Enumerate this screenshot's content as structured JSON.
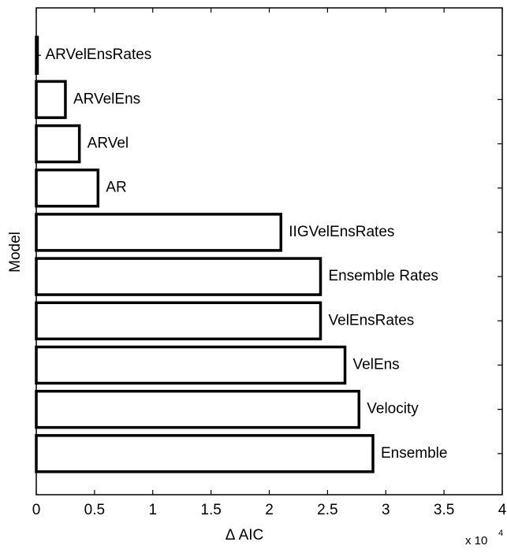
{
  "chart_data": {
    "type": "barh",
    "xlabel": "Δ AIC",
    "ylabel": "Model",
    "x_multiplier": {
      "base": "x 10",
      "exponent": "4"
    },
    "categories": [
      "ARVelEnsRates",
      "ARVelEns",
      "ARVel",
      "AR",
      "IIGVelEnsRates",
      "Ensemble Rates",
      "VelEnsRates",
      "VelEns",
      "Velocity",
      "Ensemble"
    ],
    "values": [
      0.01,
      0.25,
      0.37,
      0.53,
      2.1,
      2.44,
      2.44,
      2.65,
      2.77,
      2.89
    ],
    "color": "#ffffff",
    "edge_color": "#000000",
    "xlim": [
      0,
      4
    ],
    "xticks": [
      0,
      0.5,
      1,
      1.5,
      2,
      2.5,
      3,
      3.5,
      4
    ],
    "grid": false
  }
}
